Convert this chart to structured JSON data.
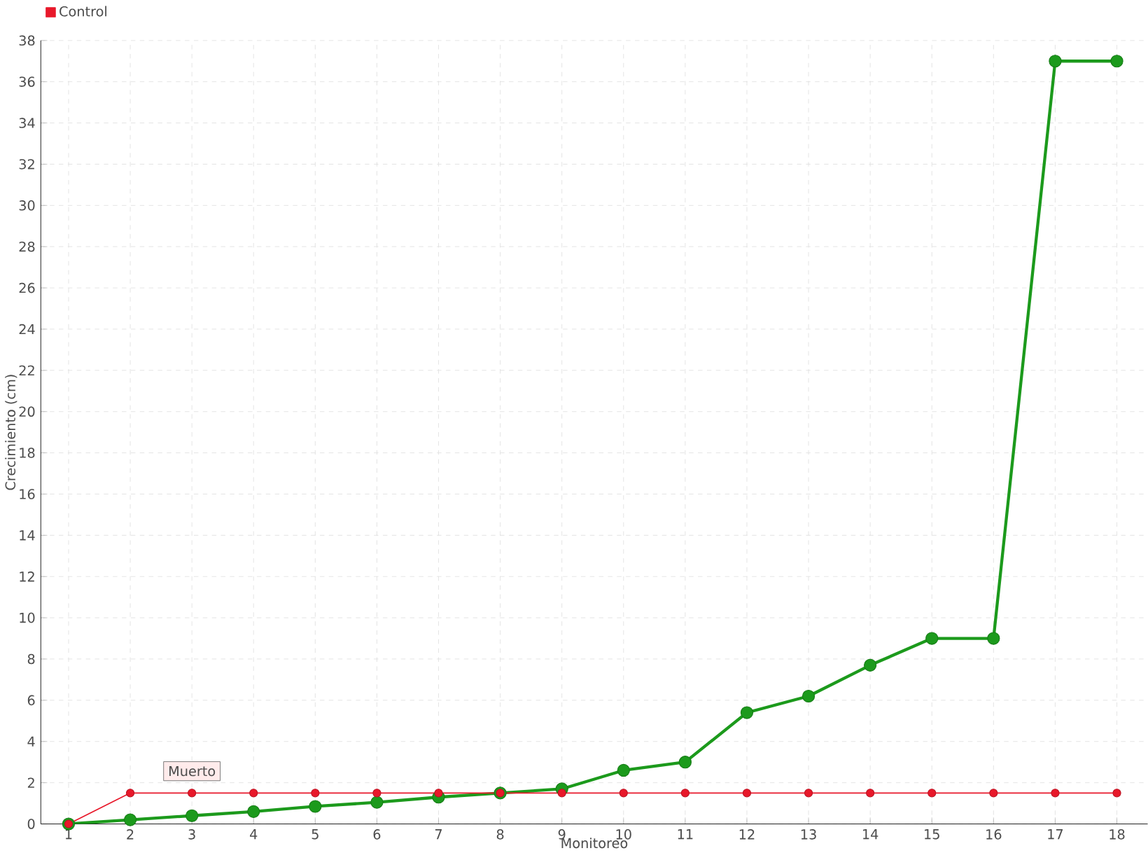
{
  "chart_data": {
    "type": "line",
    "xlabel": "Monitoreo",
    "ylabel": "Crecimiento (cm)",
    "categories": [
      "1",
      "2",
      "3",
      "4",
      "5",
      "6",
      "7",
      "8",
      "9",
      "10",
      "11",
      "12",
      "13",
      "14",
      "15",
      "16",
      "17",
      "18"
    ],
    "series": [
      {
        "color": "#1c9a1c",
        "values": [
          0,
          0.2,
          0.4,
          0.6,
          0.85,
          1.05,
          1.3,
          1.5,
          1.7,
          2.6,
          3.0,
          5.4,
          6.2,
          7.7,
          9.0,
          9.0,
          37,
          37
        ]
      },
      {
        "name": "Control",
        "color": "#e8182a",
        "values": [
          0,
          1.5,
          1.5,
          1.5,
          1.5,
          1.5,
          1.5,
          1.5,
          1.5,
          1.5,
          1.5,
          1.5,
          1.5,
          1.5,
          1.5,
          1.5,
          1.5,
          1.5
        ]
      }
    ],
    "ylim": [
      0,
      38
    ],
    "yticks": [
      0,
      2,
      4,
      6,
      8,
      10,
      12,
      14,
      16,
      18,
      20,
      22,
      24,
      26,
      28,
      30,
      32,
      34,
      36,
      38
    ],
    "grid": true,
    "legend": "top left",
    "marker": "circle",
    "line_style": "solid",
    "annotations": [
      {
        "text": "Muerto",
        "x": "3",
        "y": 1.5
      }
    ]
  }
}
